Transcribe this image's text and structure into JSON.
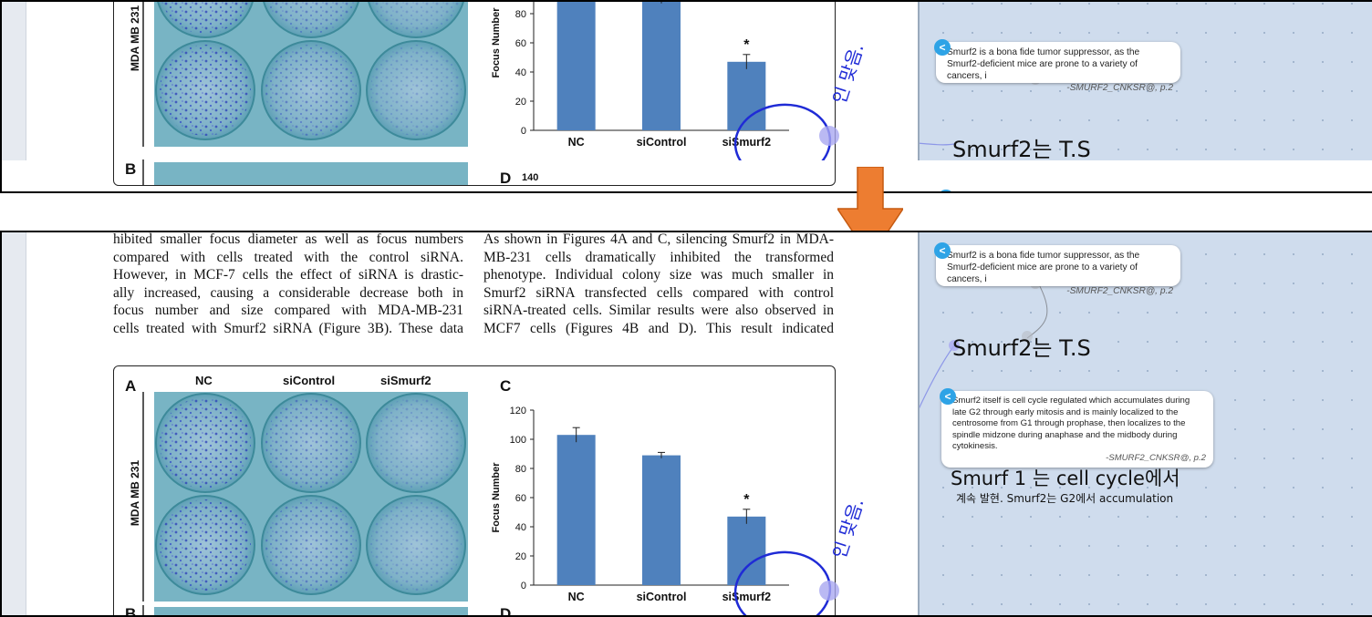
{
  "paper": {
    "col1": [
      "hibited smaller focus diameter as well as focus numbers",
      "compared with cells treated with the control siRNA.",
      "However, in MCF-7 cells the effect of siRNA is drastic-",
      "ally increased, causing a considerable decrease both in",
      "focus number and size compared with MDA-MB-231",
      "cells treated with Smurf2 siRNA (Figure 3B). These data"
    ],
    "col2": [
      "As shown in Figures 4A and C, silencing Smurf2 in MDA-",
      "MB-231 cells dramatically inhibited the transformed",
      "phenotype. Individual colony size was much smaller in",
      "Smurf2 siRNA transfected cells compared with control",
      "siRNA-treated cells. Similar results were also observed in",
      "MCF7 cells (Figures 4B and D). This result indicated"
    ]
  },
  "figure": {
    "panel_a": "A",
    "panel_b": "B",
    "panel_c": "C",
    "panel_d": "D",
    "plate_labels": [
      "NC",
      "siControl",
      "siSmurf2"
    ],
    "row_label": "MDA MB 231",
    "d_tick_top": "140"
  },
  "chart_data": {
    "type": "bar",
    "categories": [
      "NC",
      "siControl",
      "siSmurf2"
    ],
    "values": [
      103,
      89,
      47
    ],
    "errors": [
      5,
      2,
      5
    ],
    "annotations": [
      "",
      "",
      "*"
    ],
    "ylabel": "Focus Number",
    "ylim": [
      0,
      120
    ],
    "yticks": [
      0,
      20,
      40,
      60,
      80,
      100,
      120
    ],
    "grid": false
  },
  "annotation": {
    "handwriting": "인 맞음."
  },
  "notes": {
    "badge": "<",
    "note1": {
      "text": "Smurf2 is a  bona fide tumor suppressor, as the Smurf2-deficient mice  are prone to a variety of cancers, i",
      "source": "-SMURF2_CNKSR@, p.2"
    },
    "hw1": "Smurf2는 T.S",
    "note2": {
      "text": "Smurf2 itself is cell cycle regulated which accumulates during late G2 through early mitosis and is mainly localized to the centrosome from G1 through prophase, then localizes  to the spindle midzone during anaphase and the midbody  during cytokinesis.",
      "source": "-SMURF2_CNKSR@, p.2"
    },
    "hw2": "Smurf 1 는 cell cycle에서",
    "hw3": "계속 발현. Smurf2는 G2에서 accumulation"
  },
  "colors": {
    "bar": "#4f81bd",
    "pen": "#1f2bd6",
    "arrow": "#ed7d31",
    "panel_bg": "#cfdced",
    "badge": "#2ea3e6"
  }
}
